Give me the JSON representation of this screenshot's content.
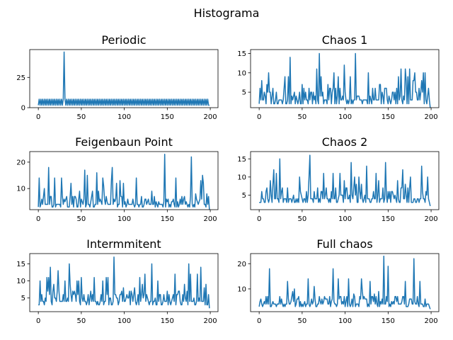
{
  "figure": {
    "suptitle": "Histograma",
    "line_color": "#1f77b4"
  },
  "chart_data": [
    {
      "type": "line",
      "title": "Periodic",
      "x": [
        0,
        199
      ],
      "xlim": [
        -10,
        209
      ],
      "ylim": [
        0,
        48
      ],
      "xticks": [
        0,
        50,
        100,
        150,
        200
      ],
      "yticks": [
        0,
        25
      ],
      "pattern": "periodic",
      "values_summary": {
        "baseline": 2,
        "oscillation_max": 7,
        "spike_x": 30,
        "spike_value": 46
      }
    },
    {
      "type": "line",
      "title": "Chaos 1",
      "x": [
        0,
        199
      ],
      "xlim": [
        -10,
        209
      ],
      "ylim": [
        1,
        16
      ],
      "xticks": [
        0,
        50,
        100,
        150,
        200
      ],
      "yticks": [
        5,
        10,
        15
      ],
      "pattern": "chaotic",
      "values_summary": {
        "min": 1,
        "max": 15,
        "peaks": [
          [
            36,
            14
          ],
          [
            70,
            15
          ],
          [
            112,
            15
          ]
        ]
      }
    },
    {
      "type": "line",
      "title": "Feigenbaun Point",
      "x": [
        0,
        199
      ],
      "xlim": [
        -10,
        209
      ],
      "ylim": [
        2,
        24
      ],
      "xticks": [
        0,
        50,
        100,
        150,
        200
      ],
      "yticks": [
        10,
        20
      ],
      "pattern": "chaotic",
      "values_summary": {
        "min": 2,
        "max": 23,
        "peaks": [
          [
            12,
            18
          ],
          [
            86,
            18
          ],
          [
            147,
            23
          ],
          [
            178,
            22
          ]
        ]
      }
    },
    {
      "type": "line",
      "title": "Chaos 2",
      "x": [
        0,
        199
      ],
      "xlim": [
        -10,
        209
      ],
      "ylim": [
        1,
        17
      ],
      "xticks": [
        0,
        50,
        100,
        150,
        200
      ],
      "yticks": [
        5,
        10,
        15
      ],
      "pattern": "chaotic",
      "values_summary": {
        "min": 2,
        "max": 16,
        "peaks": [
          [
            24,
            15
          ],
          [
            59,
            16
          ],
          [
            107,
            14
          ],
          [
            147,
            14
          ]
        ]
      }
    },
    {
      "type": "line",
      "title": "Intermmitent",
      "x": [
        0,
        199
      ],
      "xlim": [
        -10,
        209
      ],
      "ylim": [
        1,
        18
      ],
      "xticks": [
        0,
        50,
        100,
        150,
        200
      ],
      "yticks": [
        5,
        10,
        15
      ],
      "pattern": "chaotic",
      "values_summary": {
        "min": 2,
        "max": 17,
        "peaks": [
          [
            36,
            15
          ],
          [
            88,
            17
          ],
          [
            132,
            15
          ],
          [
            175,
            15
          ]
        ]
      }
    },
    {
      "type": "line",
      "title": "Full chaos",
      "x": [
        0,
        199
      ],
      "xlim": [
        -10,
        209
      ],
      "ylim": [
        1,
        24
      ],
      "xticks": [
        0,
        50,
        100,
        150,
        200
      ],
      "yticks": [
        10,
        20
      ],
      "pattern": "chaotic",
      "values_summary": {
        "min": 2,
        "max": 23,
        "peaks": [
          [
            12,
            18
          ],
          [
            86,
            18
          ],
          [
            145,
            23
          ],
          [
            180,
            22
          ]
        ]
      }
    }
  ]
}
